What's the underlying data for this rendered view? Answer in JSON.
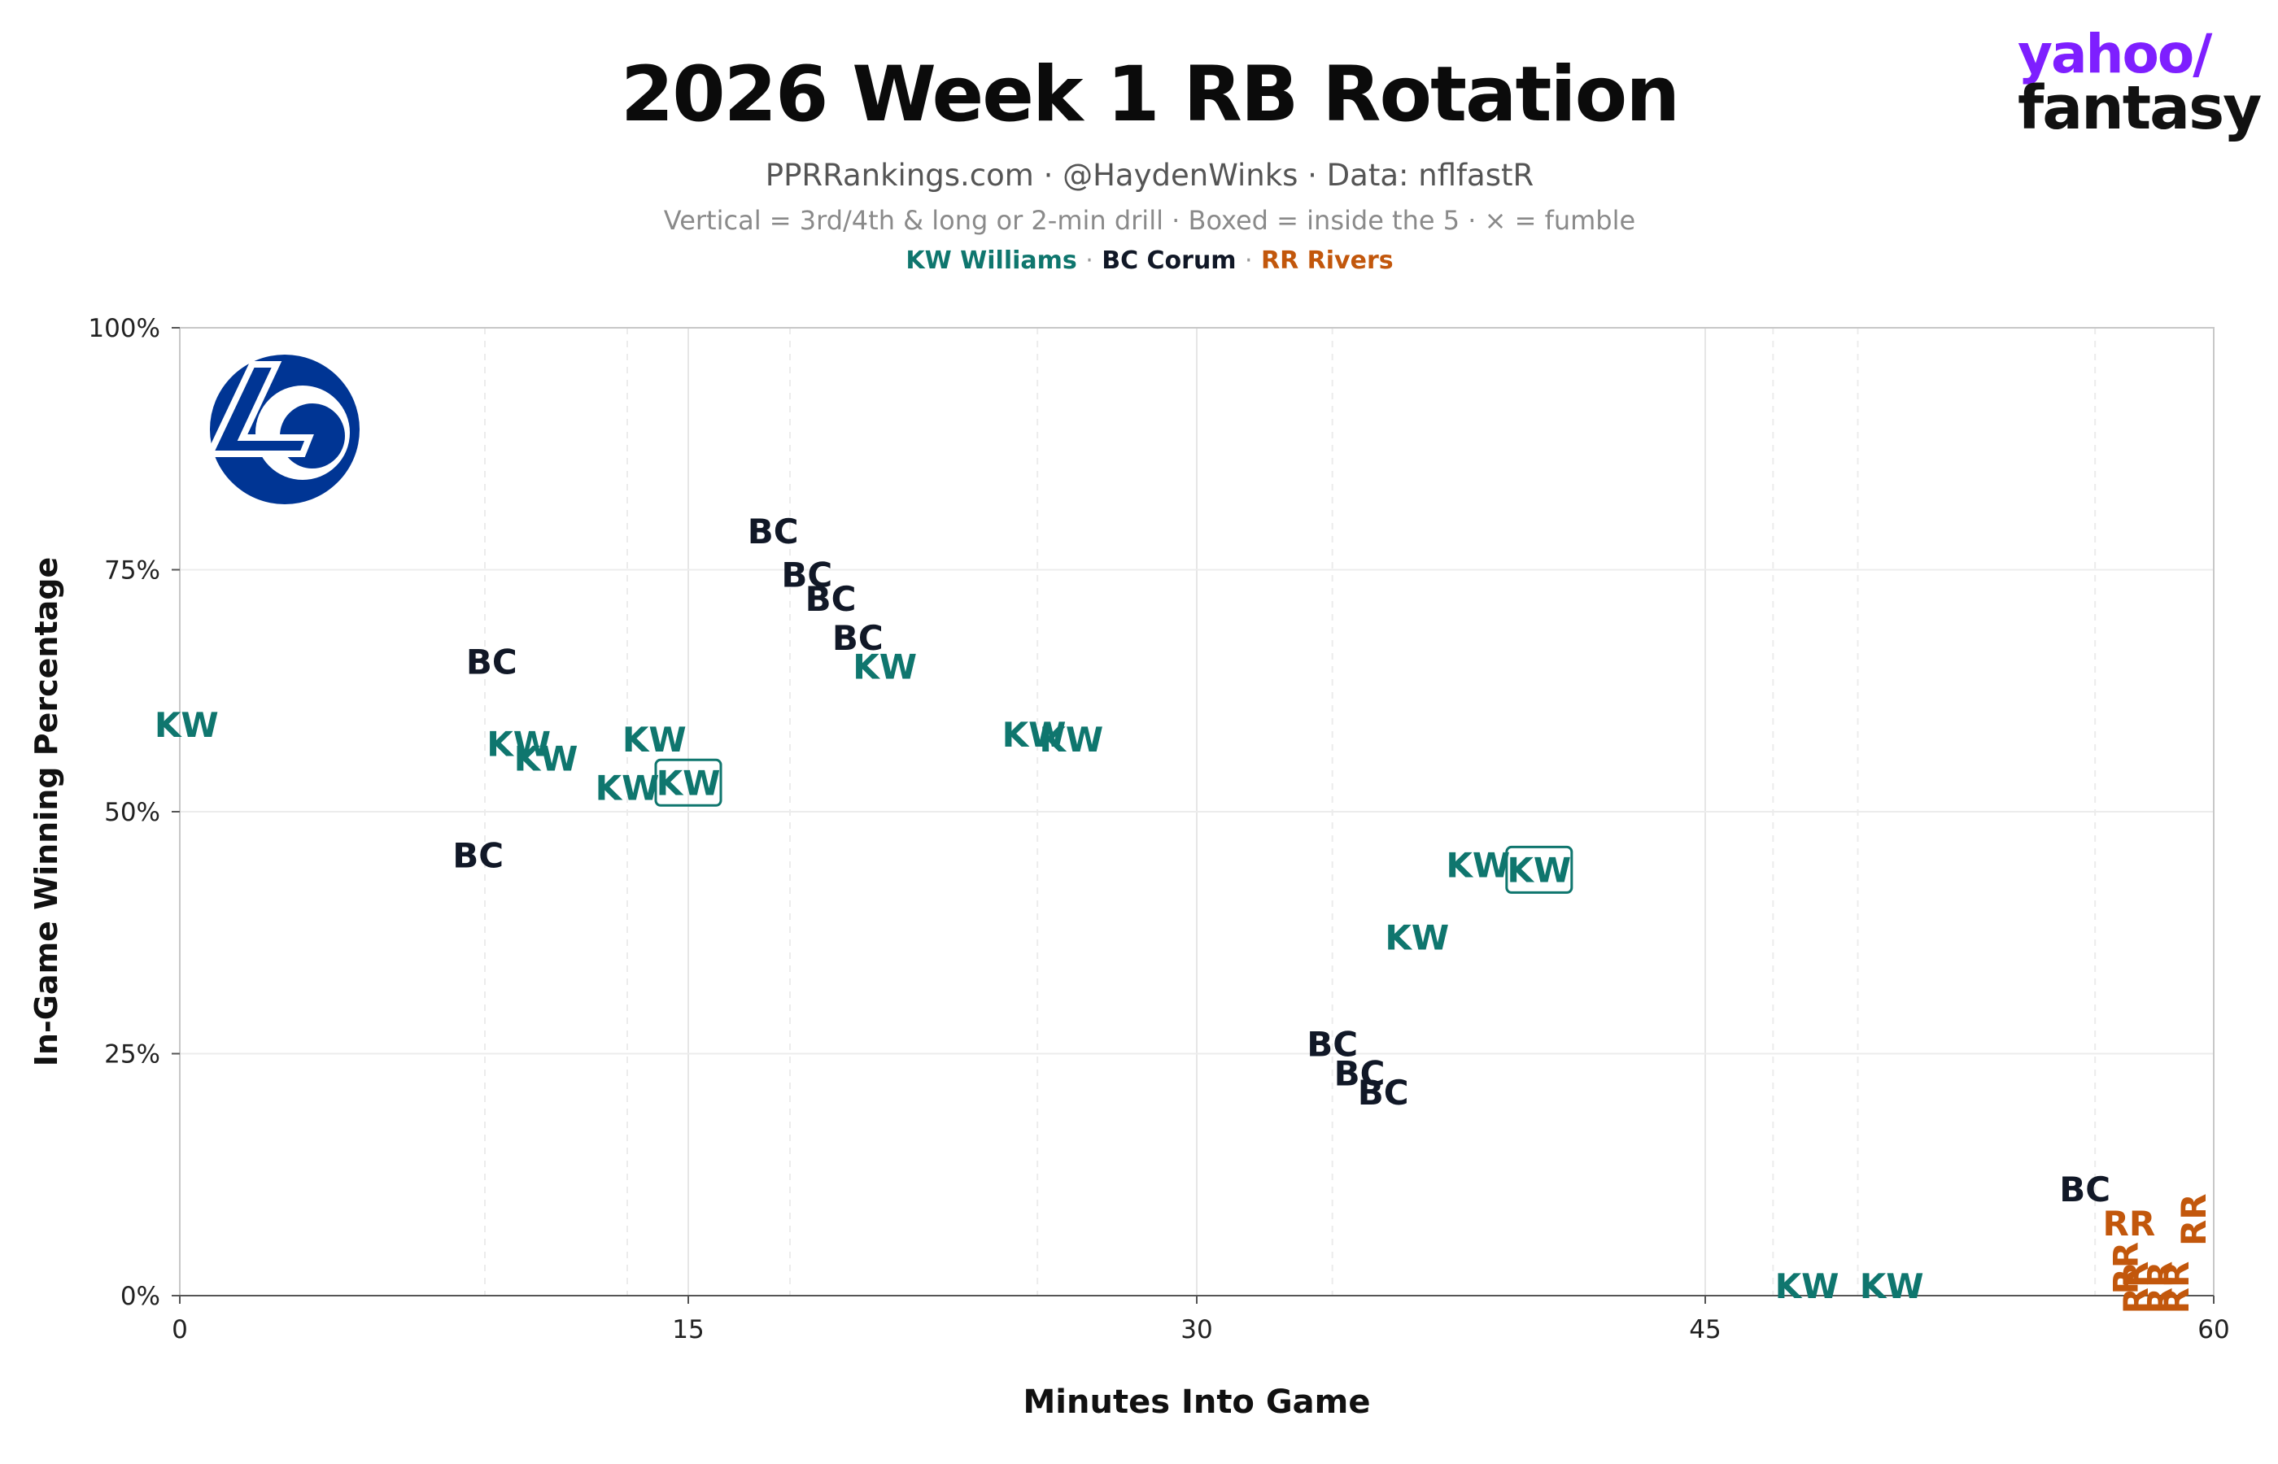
{
  "header": {
    "title": "2026 Week 1 RB Rotation",
    "subtitle": "PPRRankings.com · @HaydenWinks · Data: nflfastR",
    "note": "Vertical = 3rd/4th & long or 2-min drill · Boxed = inside the 5 · ⨯ = fumble",
    "legend": [
      {
        "label": "KW Williams",
        "color": "#0f766e"
      },
      {
        "label": "BC Corum",
        "color": "#111827"
      },
      {
        "label": "RR Rivers",
        "color": "#c2570c"
      }
    ],
    "legend_sep": "·"
  },
  "brand": {
    "line1": "yahoo/",
    "line2": "fantasy",
    "color": "#7e1fff"
  },
  "logo": {
    "name": "Los Angeles Rams logo",
    "text": "LA",
    "color": "#003594",
    "accent": "#ffffff"
  },
  "chart_data": {
    "type": "scatter",
    "title": "2026 Week 1 RB Rotation",
    "xlabel": "Minutes Into Game",
    "ylabel": "In-Game Winning Percentage",
    "xlim": [
      0,
      60
    ],
    "ylim": [
      0,
      100
    ],
    "xticks": [
      0,
      15,
      30,
      45,
      60
    ],
    "xtick_labels": [
      "0",
      "15",
      "30",
      "45",
      "60"
    ],
    "yticks": [
      0,
      25,
      50,
      75,
      100
    ],
    "ytick_labels": [
      "0%",
      "25%",
      "50%",
      "75%",
      "100%"
    ],
    "grid": true,
    "minor_x_gridlines": [
      9,
      13.2,
      18,
      25.3,
      34,
      47,
      49.5,
      56.5
    ],
    "series": [
      {
        "name": "KW Williams",
        "code": "KW",
        "color": "#0f766e",
        "points": [
          {
            "x": 0.2,
            "y": 59,
            "vertical": false,
            "boxed": false
          },
          {
            "x": 10,
            "y": 57,
            "vertical": false,
            "boxed": false
          },
          {
            "x": 10.8,
            "y": 55.5,
            "vertical": false,
            "boxed": false
          },
          {
            "x": 14,
            "y": 57.5,
            "vertical": false,
            "boxed": false
          },
          {
            "x": 13.2,
            "y": 52.5,
            "vertical": false,
            "boxed": false
          },
          {
            "x": 15,
            "y": 53,
            "vertical": false,
            "boxed": true
          },
          {
            "x": 20.8,
            "y": 65,
            "vertical": false,
            "boxed": false
          },
          {
            "x": 25.2,
            "y": 58,
            "vertical": false,
            "boxed": false
          },
          {
            "x": 26.3,
            "y": 57.5,
            "vertical": false,
            "boxed": false
          },
          {
            "x": 38.3,
            "y": 44.5,
            "vertical": false,
            "boxed": false
          },
          {
            "x": 40.1,
            "y": 44,
            "vertical": false,
            "boxed": true
          },
          {
            "x": 36.5,
            "y": 37,
            "vertical": false,
            "boxed": false
          },
          {
            "x": 48,
            "y": 1,
            "vertical": false,
            "boxed": false
          },
          {
            "x": 50.5,
            "y": 1,
            "vertical": false,
            "boxed": false
          }
        ]
      },
      {
        "name": "BC Corum",
        "code": "BC",
        "color": "#111827",
        "points": [
          {
            "x": 9.2,
            "y": 65.5,
            "vertical": false,
            "boxed": false
          },
          {
            "x": 8.8,
            "y": 45.5,
            "vertical": false,
            "boxed": false
          },
          {
            "x": 17.5,
            "y": 79,
            "vertical": false,
            "boxed": false
          },
          {
            "x": 18.5,
            "y": 74.5,
            "vertical": false,
            "boxed": false
          },
          {
            "x": 19.2,
            "y": 72,
            "vertical": false,
            "boxed": false
          },
          {
            "x": 20,
            "y": 68,
            "vertical": false,
            "boxed": false
          },
          {
            "x": 34,
            "y": 26,
            "vertical": false,
            "boxed": false
          },
          {
            "x": 34.8,
            "y": 23,
            "vertical": false,
            "boxed": false
          },
          {
            "x": 35.5,
            "y": 21,
            "vertical": false,
            "boxed": false
          },
          {
            "x": 56.2,
            "y": 11,
            "vertical": false,
            "boxed": false
          }
        ]
      },
      {
        "name": "RR Rivers",
        "code": "RR",
        "color": "#c2570c",
        "points": [
          {
            "x": 57.5,
            "y": 7.5,
            "vertical": false,
            "boxed": false
          },
          {
            "x": 59.4,
            "y": 7,
            "vertical": true,
            "boxed": false
          },
          {
            "x": 57.4,
            "y": 2,
            "vertical": true,
            "boxed": false
          },
          {
            "x": 57.7,
            "y": 0,
            "vertical": true,
            "boxed": false
          },
          {
            "x": 58.4,
            "y": 0,
            "vertical": true,
            "boxed": false
          },
          {
            "x": 58.9,
            "y": 0,
            "vertical": true,
            "boxed": false
          }
        ]
      }
    ]
  }
}
